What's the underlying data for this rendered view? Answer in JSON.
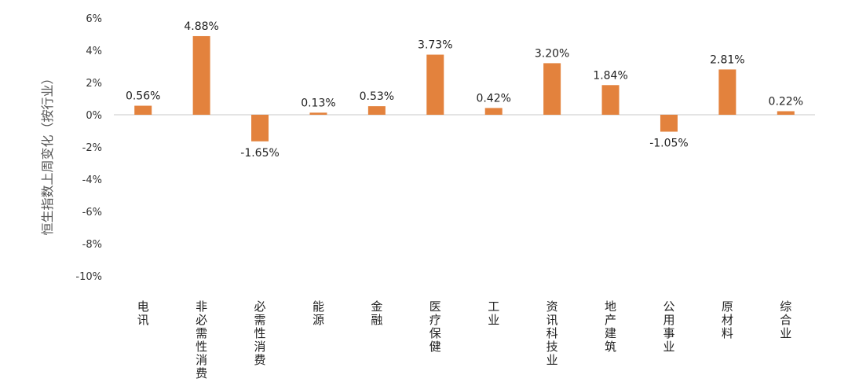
{
  "chart_data": {
    "type": "bar",
    "ylabel": "恒生指数上周变化（按行业）",
    "ylim": [
      -10,
      6
    ],
    "yticks": [
      6,
      4,
      2,
      0,
      -2,
      -4,
      -6,
      -8,
      -10
    ],
    "ytick_labels": [
      "6%",
      "4%",
      "2%",
      "0%",
      "-2%",
      "-4%",
      "-6%",
      "-8%",
      "-10%"
    ],
    "categories": [
      "电讯",
      "非必需性消费",
      "必需性消费",
      "能源",
      "金融",
      "医疗保健",
      "工业",
      "资讯科技业",
      "地产建筑",
      "公用事业",
      "原材料",
      "综合业"
    ],
    "values": [
      0.56,
      4.88,
      -1.65,
      0.13,
      0.53,
      3.73,
      0.42,
      3.2,
      1.84,
      -1.05,
      2.81,
      0.22
    ],
    "data_labels": [
      "0.56%",
      "4.88%",
      "-1.65%",
      "0.13%",
      "0.53%",
      "3.73%",
      "0.42%",
      "3.20%",
      "1.84%",
      "-1.05%",
      "2.81%",
      "0.22%"
    ],
    "bar_color": "#E3823D",
    "grid": false,
    "legend": "none"
  }
}
